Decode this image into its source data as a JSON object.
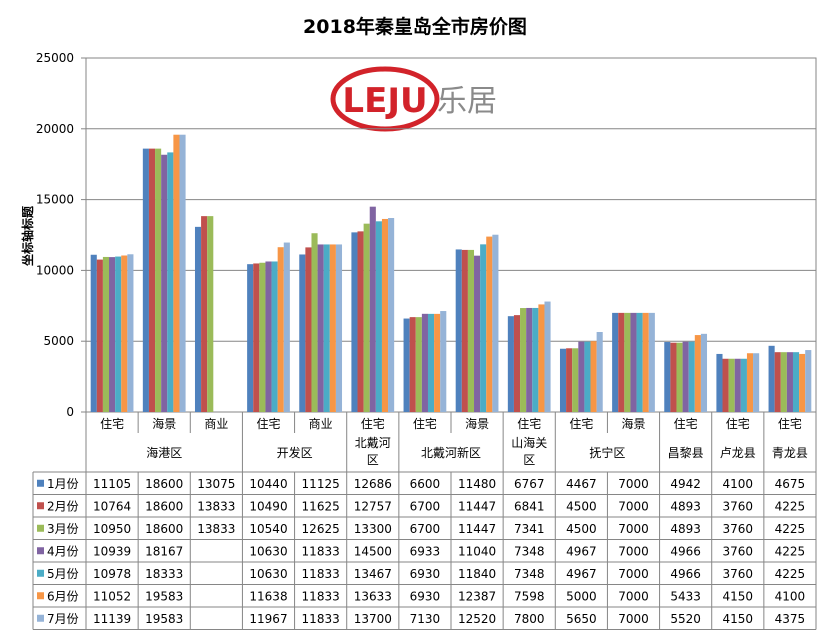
{
  "chart_data": {
    "type": "bar",
    "title": "2018年秦皇岛全市房价图",
    "ylabel": "坐标轴标题",
    "ylim": [
      0,
      25000
    ],
    "yticks": [
      0,
      5000,
      10000,
      15000,
      20000,
      25000
    ],
    "grid": true,
    "legend": "bottom (data table)",
    "logo": {
      "mark": "LEJU",
      "text": "乐居"
    },
    "categories": [
      {
        "sub": "住宅",
        "group": "海港区"
      },
      {
        "sub": "海景",
        "group": "海港区"
      },
      {
        "sub": "商业",
        "group": "海港区"
      },
      {
        "sub": "住宅",
        "group": "开发区"
      },
      {
        "sub": "商业",
        "group": "开发区"
      },
      {
        "sub": "住宅",
        "group": "北戴河区"
      },
      {
        "sub": "住宅",
        "group": "北戴河新区"
      },
      {
        "sub": "海景",
        "group": "北戴河新区"
      },
      {
        "sub": "住宅",
        "group": "山海关区"
      },
      {
        "sub": "住宅",
        "group": "抚宁区"
      },
      {
        "sub": "海景",
        "group": "抚宁区"
      },
      {
        "sub": "住宅",
        "group": "昌黎县"
      },
      {
        "sub": "住宅",
        "group": "卢龙县"
      },
      {
        "sub": "住宅",
        "group": "青龙县"
      }
    ],
    "groups": [
      {
        "label": "海港区",
        "start": 0,
        "span": 3
      },
      {
        "label": "开发区",
        "start": 3,
        "span": 2
      },
      {
        "label": "北戴河区",
        "start": 5,
        "span": 1
      },
      {
        "label": "北戴河新区",
        "start": 6,
        "span": 2
      },
      {
        "label": "山海关区",
        "start": 8,
        "span": 1
      },
      {
        "label": "抚宁区",
        "start": 9,
        "span": 2
      },
      {
        "label": "昌黎县",
        "start": 11,
        "span": 1
      },
      {
        "label": "卢龙县",
        "start": 12,
        "span": 1
      },
      {
        "label": "青龙县",
        "start": 13,
        "span": 1
      }
    ],
    "series": [
      {
        "name": "1月份",
        "color": "#4F81BD",
        "values": [
          11105,
          18600,
          13075,
          10440,
          11125,
          12686,
          6600,
          11480,
          6767,
          4467,
          7000,
          4942,
          4100,
          4675
        ]
      },
      {
        "name": "2月份",
        "color": "#C0504D",
        "values": [
          10764,
          18600,
          13833,
          10490,
          11625,
          12757,
          6700,
          11447,
          6841,
          4500,
          7000,
          4893,
          3760,
          4225
        ]
      },
      {
        "name": "3月份",
        "color": "#9BBB59",
        "values": [
          10950,
          18600,
          13833,
          10540,
          12625,
          13300,
          6700,
          11447,
          7341,
          4500,
          7000,
          4893,
          3760,
          4225
        ]
      },
      {
        "name": "4月份",
        "color": "#8064A2",
        "values": [
          10939,
          18167,
          null,
          10630,
          11833,
          14500,
          6933,
          11040,
          7348,
          4967,
          7000,
          4966,
          3760,
          4225
        ]
      },
      {
        "name": "5月份",
        "color": "#4BACC6",
        "values": [
          10978,
          18333,
          null,
          10630,
          11833,
          13467,
          6930,
          11840,
          7348,
          4967,
          7000,
          4966,
          3760,
          4225
        ]
      },
      {
        "name": "6月份",
        "color": "#F79646",
        "values": [
          11052,
          19583,
          null,
          11638,
          11833,
          13633,
          6930,
          12387,
          7598,
          5000,
          7000,
          5433,
          4150,
          4100
        ]
      },
      {
        "name": "7月份",
        "color": "#95B3D7",
        "values": [
          11139,
          19583,
          null,
          11967,
          11833,
          13700,
          7130,
          12520,
          7800,
          5650,
          7000,
          5520,
          4150,
          4375
        ]
      }
    ]
  }
}
